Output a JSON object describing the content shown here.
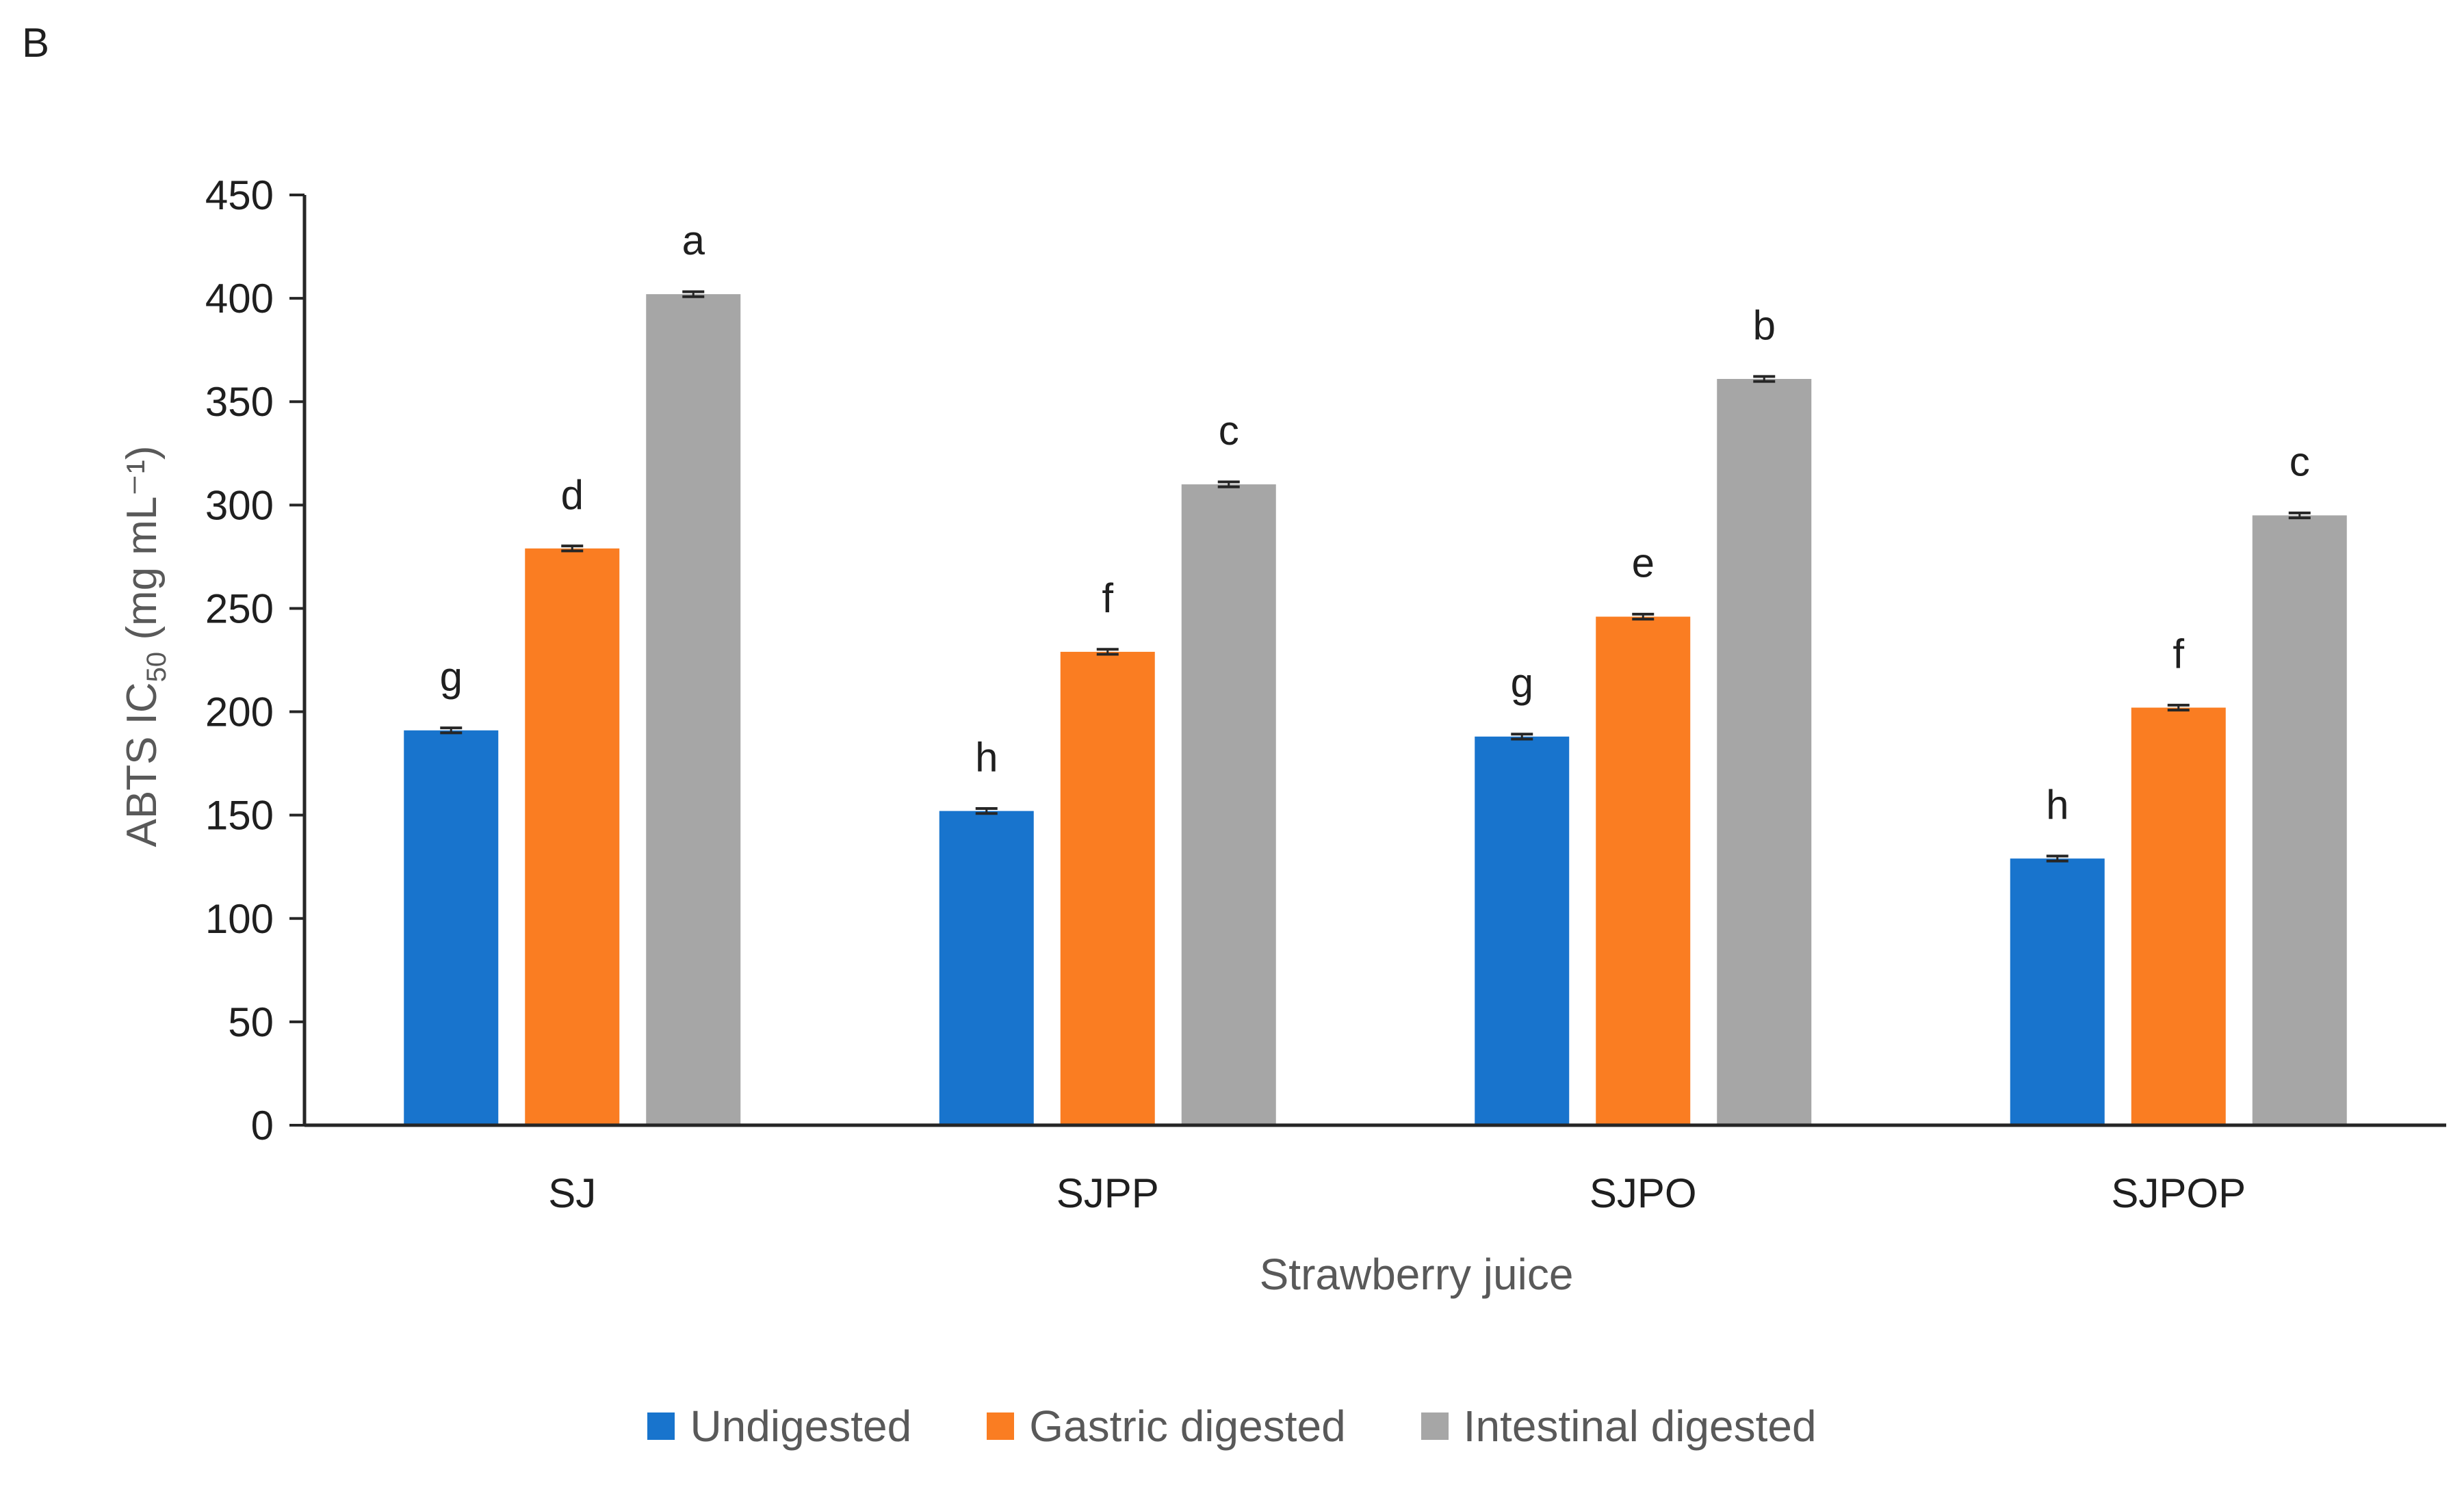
{
  "chart_data": {
    "type": "bar",
    "panel_label": "B",
    "ylabel": {
      "prefix": "ABTS IC",
      "subscript": "50",
      "suffix": " (mg mL⁻¹)"
    },
    "xlabel": "Strawberry juice",
    "categories": [
      "SJ",
      "SJPP",
      "SJPO",
      "SJPOP"
    ],
    "ylim": [
      0,
      450
    ],
    "yticks": [
      0,
      50,
      100,
      150,
      200,
      250,
      300,
      350,
      400,
      450
    ],
    "series": [
      {
        "name": "Undigested",
        "color": "#1874cd",
        "values": [
          191,
          152,
          188,
          129
        ],
        "errors": [
          1.2,
          1.2,
          1.2,
          1.2
        ],
        "letters": [
          "g",
          "h",
          "g",
          "h"
        ]
      },
      {
        "name": "Gastric digested",
        "color": "#fa7d22",
        "values": [
          279,
          229,
          246,
          202
        ],
        "errors": [
          1.2,
          1.2,
          1.2,
          1.2
        ],
        "letters": [
          "d",
          "f",
          "e",
          "f"
        ]
      },
      {
        "name": "Intestinal digested",
        "color": "#a6a6a6",
        "values": [
          402,
          310,
          361,
          295
        ],
        "errors": [
          1.2,
          1.2,
          1.2,
          1.2
        ],
        "letters": [
          "a",
          "c",
          "b",
          "c"
        ]
      }
    ],
    "legend_position": "bottom",
    "grid": false
  }
}
